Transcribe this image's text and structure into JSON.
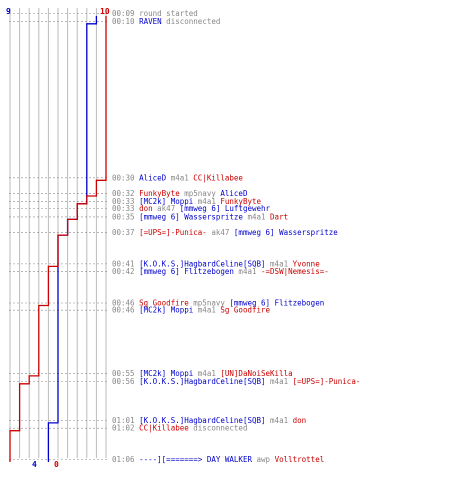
{
  "score": {
    "blue_start": "9",
    "red_start": "10",
    "blue_final": "4",
    "red_final": "0"
  },
  "colors": {
    "blue_team": "#0000cc",
    "red_team": "#cc0000",
    "neutral": "#888888",
    "grid": "#bbbbbb"
  },
  "chart_data": {
    "type": "line",
    "ylim": [
      0,
      10
    ],
    "x_is_time": true,
    "series": [
      {
        "color": "#0000cc",
        "points": [
          [
            "00:09",
            9
          ],
          [
            "00:10",
            9
          ],
          [
            "00:10",
            8
          ],
          [
            "00:33",
            8
          ],
          [
            "00:33",
            7
          ],
          [
            "00:35",
            7
          ],
          [
            "00:35",
            6
          ],
          [
            "00:37",
            6
          ],
          [
            "00:37",
            5
          ],
          [
            "01:01",
            5
          ],
          [
            "01:01",
            4
          ],
          [
            "01:06",
            4
          ]
        ]
      },
      {
        "color": "#cc0000",
        "points": [
          [
            "00:09",
            10
          ],
          [
            "00:30",
            10
          ],
          [
            "00:30",
            9
          ],
          [
            "00:32",
            9
          ],
          [
            "00:32",
            8
          ],
          [
            "00:33",
            8
          ],
          [
            "00:33",
            7
          ],
          [
            "00:35",
            7
          ],
          [
            "00:35",
            6
          ],
          [
            "00:37",
            6
          ],
          [
            "00:37",
            5
          ],
          [
            "00:41",
            5
          ],
          [
            "00:41",
            4
          ],
          [
            "00:46",
            4
          ],
          [
            "00:46",
            3
          ],
          [
            "00:55",
            3
          ],
          [
            "00:55",
            2
          ],
          [
            "00:56",
            2
          ],
          [
            "00:56",
            1
          ],
          [
            "01:02",
            1
          ],
          [
            "01:02",
            0
          ],
          [
            "01:06",
            0
          ]
        ]
      }
    ]
  },
  "events": [
    {
      "time": "00:09",
      "parts": [
        {
          "t": "round started",
          "c": "gray"
        }
      ]
    },
    {
      "time": "00:10",
      "parts": [
        {
          "t": "RAVEN",
          "c": "blue"
        },
        {
          "t": " disconnected",
          "c": "gray"
        }
      ]
    },
    {
      "time": "00:30",
      "parts": [
        {
          "t": "AliceD",
          "c": "blue"
        },
        {
          "t": " m4a1 ",
          "c": "gray"
        },
        {
          "t": "CC|Killabee",
          "c": "red"
        }
      ]
    },
    {
      "time": "00:32",
      "parts": [
        {
          "t": "FunkyByte",
          "c": "red"
        },
        {
          "t": " mp5navy ",
          "c": "gray"
        },
        {
          "t": "AliceD",
          "c": "blue"
        }
      ]
    },
    {
      "time": "00:33",
      "parts": [
        {
          "t": "[MC2k] Moppi",
          "c": "blue"
        },
        {
          "t": " m4a1 ",
          "c": "gray"
        },
        {
          "t": "FunkyByte",
          "c": "red"
        }
      ]
    },
    {
      "time": "00:33",
      "parts": [
        {
          "t": "don",
          "c": "red"
        },
        {
          "t": " ak47 ",
          "c": "gray"
        },
        {
          "t": "[mmweg 6] Luftgewehr",
          "c": "blue"
        }
      ]
    },
    {
      "time": "00:35",
      "parts": [
        {
          "t": "[mmweg 6] Wasserspritze",
          "c": "blue"
        },
        {
          "t": " m4a1 ",
          "c": "gray"
        },
        {
          "t": "Dart",
          "c": "red"
        }
      ]
    },
    {
      "time": "00:37",
      "parts": [
        {
          "t": "[=UPS=]-Punica-",
          "c": "red"
        },
        {
          "t": " ak47 ",
          "c": "gray"
        },
        {
          "t": "[mmweg 6] Wasserspritze",
          "c": "blue"
        }
      ]
    },
    {
      "time": "00:41",
      "parts": [
        {
          "t": "[K.O.K.S.]HagbardCeline[SQB]",
          "c": "blue"
        },
        {
          "t": " m4a1 ",
          "c": "gray"
        },
        {
          "t": "Yvonne",
          "c": "red"
        }
      ]
    },
    {
      "time": "00:42",
      "parts": [
        {
          "t": "[mmweg 6] Flitzebogen",
          "c": "blue"
        },
        {
          "t": " m4a1 ",
          "c": "gray"
        },
        {
          "t": "-=DSW|Nemesis=-",
          "c": "red"
        }
      ]
    },
    {
      "time": "00:46",
      "parts": [
        {
          "t": "Sg Goodfire",
          "c": "red"
        },
        {
          "t": " mp5navy ",
          "c": "gray"
        },
        {
          "t": "[mmweg 6] Flitzebogen",
          "c": "blue"
        }
      ]
    },
    {
      "time": "00:46",
      "parts": [
        {
          "t": "[MC2k] Moppi",
          "c": "blue"
        },
        {
          "t": " m4a1 ",
          "c": "gray"
        },
        {
          "t": "Sg Goodfire",
          "c": "red"
        }
      ]
    },
    {
      "time": "00:55",
      "parts": [
        {
          "t": "[MC2k] Moppi",
          "c": "blue"
        },
        {
          "t": " m4a1 ",
          "c": "gray"
        },
        {
          "t": "[UN]DaNoiSeKilla",
          "c": "red"
        }
      ]
    },
    {
      "time": "00:56",
      "parts": [
        {
          "t": "[K.O.K.S.]HagbardCeline[SQB]",
          "c": "blue"
        },
        {
          "t": " m4a1 ",
          "c": "gray"
        },
        {
          "t": "[=UPS=]-Punica-",
          "c": "red"
        }
      ]
    },
    {
      "time": "01:01",
      "parts": [
        {
          "t": "[K.O.K.S.]HagbardCeline[SQB]",
          "c": "blue"
        },
        {
          "t": " m4a1 ",
          "c": "gray"
        },
        {
          "t": "don",
          "c": "red"
        }
      ]
    },
    {
      "time": "01:02",
      "parts": [
        {
          "t": "CC|Killabee",
          "c": "red"
        },
        {
          "t": " disconnected",
          "c": "gray"
        }
      ]
    },
    {
      "time": "01:06",
      "parts": [
        {
          "t": "----][=======> DAY WALKER",
          "c": "blue"
        },
        {
          "t": " awp ",
          "c": "gray"
        },
        {
          "t": "Volltrottel",
          "c": "red"
        }
      ]
    }
  ]
}
